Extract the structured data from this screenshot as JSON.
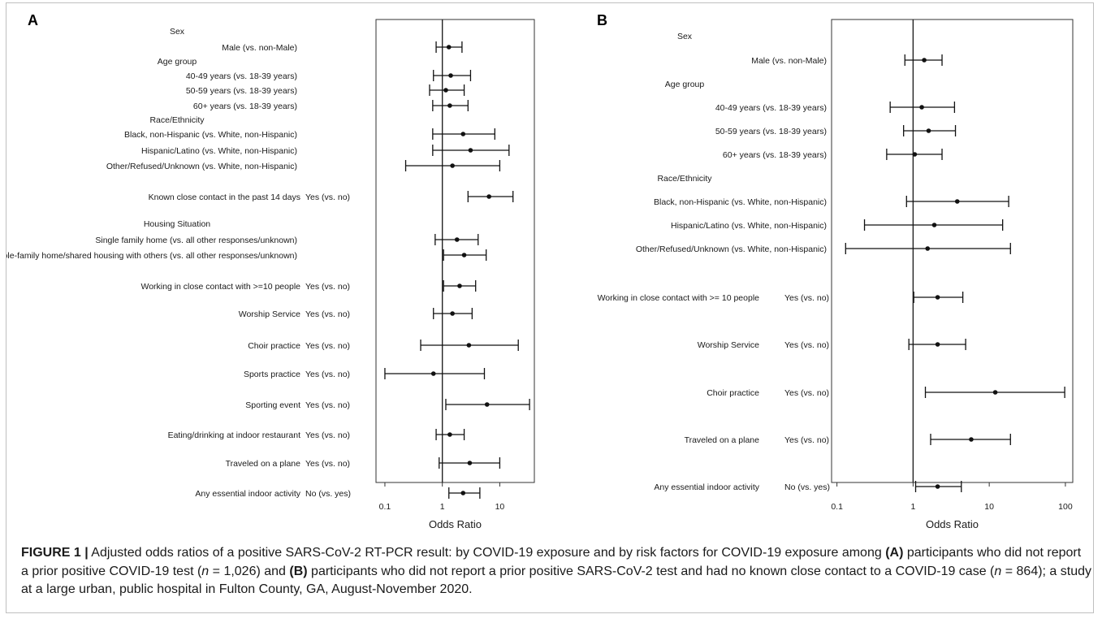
{
  "caption": {
    "label": "FIGURE 1 |",
    "t1": " Adjusted odds ratios of a positive SARS-CoV-2 RT-PCR result: by COVID-19 exposure and by risk factors for COVID-19 exposure among ",
    "a": "(A)",
    "t2": " participants who did not report a prior positive COVID-19 test (",
    "n1": "n",
    "t3": " = 1,026) and ",
    "b": "(B)",
    "t4": " participants who did not report a prior positive SARS-CoV-2 test and had no known close contact to a COVID-19 case (",
    "n2": "n",
    "t5": " = 864); a study at a large urban, public hospital in Fulton County, GA, August-November 2020."
  },
  "chart_data": [
    {
      "panel": "A",
      "type": "forest",
      "xlabel": "Odds Ratio",
      "xscale": "log",
      "xlim": [
        0.07,
        40
      ],
      "xticks": [
        0.1,
        1,
        10
      ],
      "xtick_labels": [
        "0.1",
        "1",
        "10"
      ],
      "reference_line": 1,
      "headers": [
        "Sex",
        "Age group",
        "Race/Ethnicity",
        "Housing Situation"
      ],
      "rows": [
        {
          "label": "Male (vs. non-Male)",
          "or": 1.3,
          "lo": 0.78,
          "hi": 2.2
        },
        {
          "label": "40-49 years (vs. 18-39 years)",
          "or": 1.4,
          "lo": 0.7,
          "hi": 3.1
        },
        {
          "label": "50-59 years (vs. 18-39 years)",
          "or": 1.15,
          "lo": 0.6,
          "hi": 2.4
        },
        {
          "label": "60+ years (vs. 18-39 years)",
          "or": 1.35,
          "lo": 0.68,
          "hi": 2.8
        },
        {
          "label": "Black, non-Hispanic (vs. White, non-Hispanic)",
          "or": 2.3,
          "lo": 0.68,
          "hi": 8.2
        },
        {
          "label": "Hispanic/Latino (vs. White, non-Hispanic)",
          "or": 3.1,
          "lo": 0.68,
          "hi": 14.5
        },
        {
          "label": "Other/Refused/Unknown (vs. White, non-Hispanic)",
          "or": 1.5,
          "lo": 0.23,
          "hi": 10
        },
        {
          "label": "Known close contact in the past 14 days",
          "level": "Yes (vs. no)",
          "or": 6.5,
          "lo": 2.8,
          "hi": 17
        },
        {
          "label": "Single family home (vs. all other responses/unknown)",
          "or": 1.8,
          "lo": 0.75,
          "hi": 4.2
        },
        {
          "label": "Multiple-family home/shared housing with others (vs. all other responses/unknown)",
          "or": 2.4,
          "lo": 1.05,
          "hi": 5.8
        },
        {
          "label": "Working in close contact with >=10 people",
          "level": "Yes (vs. no)",
          "or": 2.0,
          "lo": 1.05,
          "hi": 3.8
        },
        {
          "label": "Worship Service",
          "level": "Yes (vs. no)",
          "or": 1.5,
          "lo": 0.7,
          "hi": 3.3
        },
        {
          "label": "Choir practice",
          "level": "Yes (vs. no)",
          "or": 2.9,
          "lo": 0.42,
          "hi": 21
        },
        {
          "label": "Sports practice",
          "level": "Yes (vs. no)",
          "or": 0.7,
          "lo": 0.1,
          "hi": 5.4
        },
        {
          "label": "Sporting event",
          "level": "Yes (vs. no)",
          "or": 6.0,
          "lo": 1.15,
          "hi": 33
        },
        {
          "label": "Eating/drinking at indoor restaurant",
          "level": "Yes (vs. no)",
          "or": 1.35,
          "lo": 0.78,
          "hi": 2.4
        },
        {
          "label": "Traveled on a plane",
          "level": "Yes (vs. no)",
          "or": 3.0,
          "lo": 0.88,
          "hi": 10
        },
        {
          "label": "Any essential indoor activity",
          "level": "No (vs. yes)",
          "or": 2.3,
          "lo": 1.3,
          "hi": 4.5
        }
      ]
    },
    {
      "panel": "B",
      "type": "forest",
      "xlabel": "Odds Ratio",
      "xscale": "log",
      "xlim": [
        0.085,
        125
      ],
      "xticks": [
        0.1,
        1,
        10,
        100
      ],
      "xtick_labels": [
        "0.1",
        "1",
        "10",
        "100"
      ],
      "reference_line": 1,
      "headers": [
        "Sex",
        "Age group",
        "Race/Ethnicity"
      ],
      "rows": [
        {
          "label": "Male (vs. non-Male)",
          "or": 1.4,
          "lo": 0.78,
          "hi": 2.4
        },
        {
          "label": "40-49 years (vs. 18-39 years)",
          "or": 1.3,
          "lo": 0.5,
          "hi": 3.5
        },
        {
          "label": "50-59 years (vs. 18-39 years)",
          "or": 1.6,
          "lo": 0.75,
          "hi": 3.6
        },
        {
          "label": "60+ years (vs. 18-39 years)",
          "or": 1.05,
          "lo": 0.45,
          "hi": 2.4
        },
        {
          "label": "Black, non-Hispanic (vs. White, non-Hispanic)",
          "or": 3.8,
          "lo": 0.82,
          "hi": 18
        },
        {
          "label": "Hispanic/Latino (vs. White, non-Hispanic)",
          "or": 1.9,
          "lo": 0.23,
          "hi": 15
        },
        {
          "label": "Other/Refused/Unknown (vs. White, non-Hispanic)",
          "or": 1.55,
          "lo": 0.13,
          "hi": 19
        },
        {
          "label": "Working in close contact with >= 10 people",
          "level": "Yes (vs. no)",
          "or": 2.1,
          "lo": 1.02,
          "hi": 4.5
        },
        {
          "label": "Worship Service",
          "level": "Yes (vs. no)",
          "or": 2.1,
          "lo": 0.88,
          "hi": 4.9
        },
        {
          "label": "Choir practice",
          "level": "Yes (vs. no)",
          "or": 12,
          "lo": 1.45,
          "hi": 98
        },
        {
          "label": "Traveled on a plane",
          "level": "Yes (vs. no)",
          "or": 5.8,
          "lo": 1.7,
          "hi": 19
        },
        {
          "label": "Any essential indoor activity",
          "level": "No (vs. yes)",
          "or": 2.1,
          "lo": 1.08,
          "hi": 4.3
        }
      ]
    }
  ]
}
